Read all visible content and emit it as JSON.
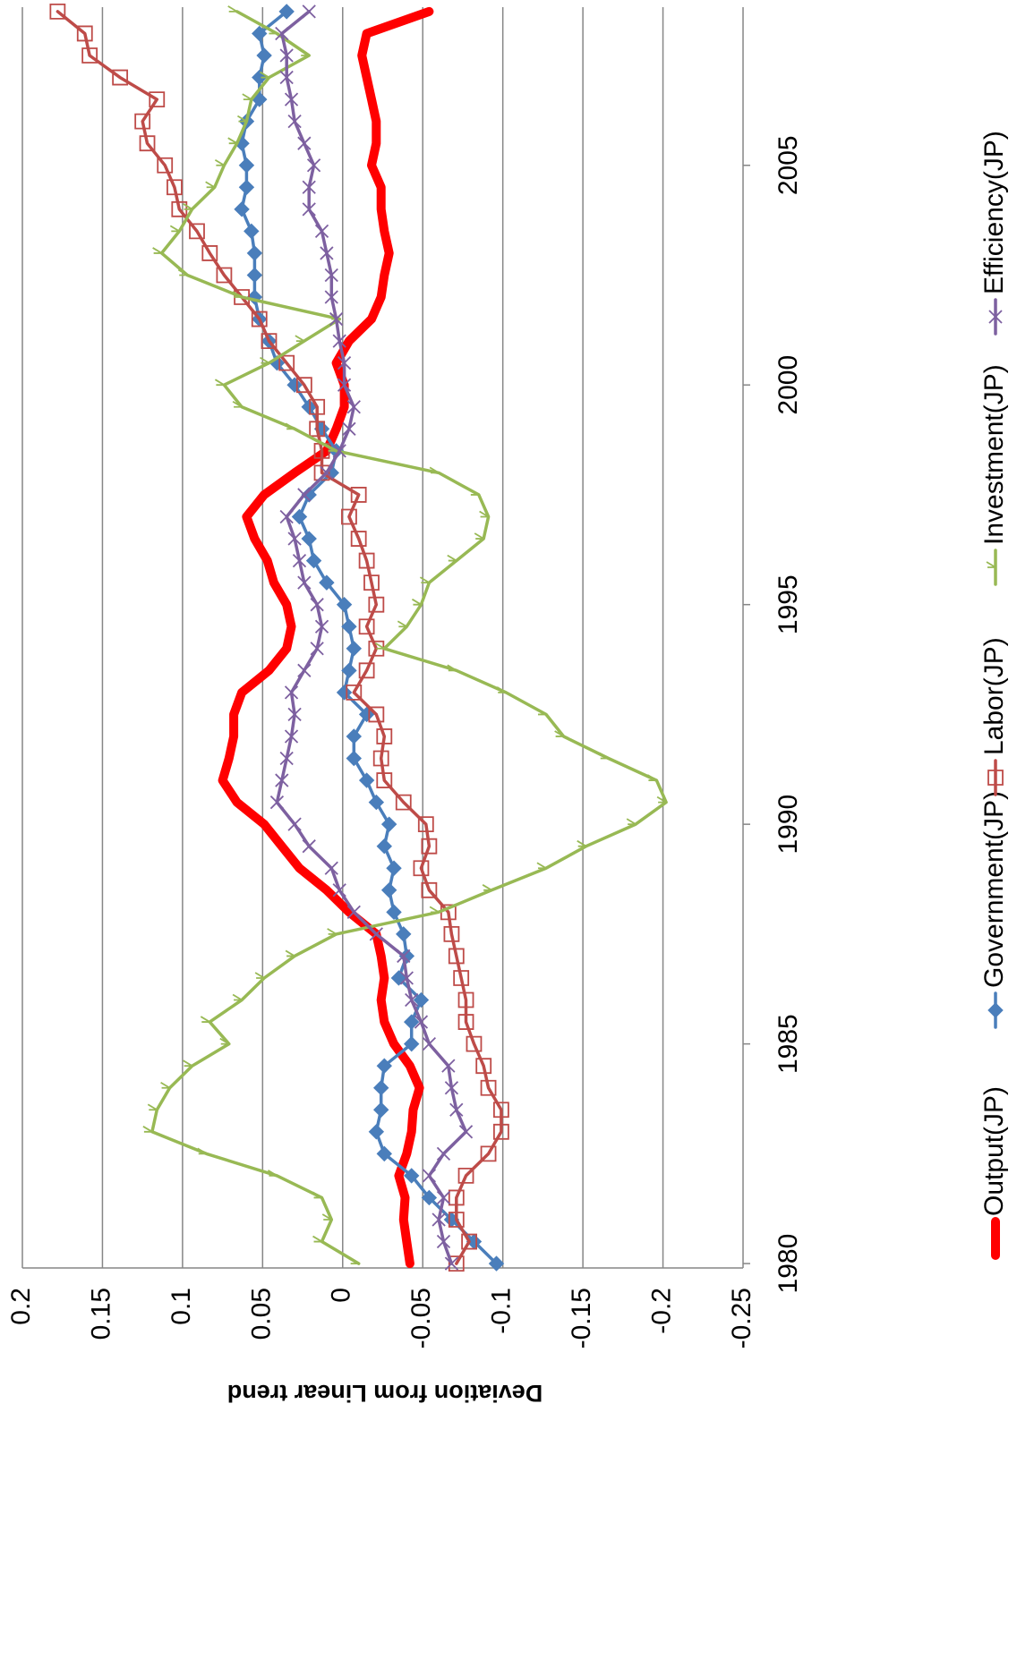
{
  "chart_data": {
    "type": "line",
    "y_label": "Deviation from Linear trend",
    "x": [
      1980,
      1980.5,
      1981,
      1981.5,
      1982,
      1982.5,
      1983,
      1983.5,
      1984,
      1984.5,
      1985,
      1985.5,
      1986,
      1986.5,
      1987,
      1987.5,
      1988,
      1988.5,
      1989,
      1989.5,
      1990,
      1990.5,
      1991,
      1991.5,
      1992,
      1992.5,
      1993,
      1993.5,
      1994,
      1994.5,
      1995,
      1995.5,
      1996,
      1996.5,
      1997,
      1997.5,
      1998,
      1998.5,
      1999,
      1999.5,
      2000,
      2000.5,
      2001,
      2001.5,
      2002,
      2002.5,
      2003,
      2003.5,
      2004,
      2004.5,
      2005,
      2005.5,
      2006,
      2006.5,
      2007,
      2007.5,
      2008,
      2008.5
    ],
    "xlim": [
      1979.9,
      2008.6
    ],
    "xticks": [
      1980,
      1985,
      1990,
      1995,
      2000,
      2005
    ],
    "ylim": [
      -0.25,
      0.2
    ],
    "yticks": [
      0.2,
      0.15,
      0.1,
      0.05,
      0,
      -0.05,
      -0.1,
      -0.15,
      -0.2,
      -0.25
    ],
    "grid": true,
    "legend": "bottom",
    "series": [
      {
        "name": "Output(JP)",
        "color": "#ff0000",
        "marker": "none",
        "values": [
          -0.042,
          -0.04,
          -0.038,
          -0.039,
          -0.035,
          -0.04,
          -0.043,
          -0.044,
          -0.048,
          -0.042,
          -0.032,
          -0.026,
          -0.024,
          -0.026,
          -0.024,
          -0.021,
          -0.004,
          0.01,
          0.027,
          0.038,
          0.049,
          0.066,
          0.075,
          0.071,
          0.068,
          0.068,
          0.063,
          0.046,
          0.035,
          0.032,
          0.035,
          0.043,
          0.047,
          0.055,
          0.06,
          0.049,
          0.03,
          0.01,
          0.004,
          -0.001,
          -0.001,
          0.004,
          -0.004,
          -0.018,
          -0.024,
          -0.026,
          -0.029,
          -0.026,
          -0.024,
          -0.024,
          -0.018,
          -0.021,
          -0.021,
          -0.018,
          -0.015,
          -0.012,
          -0.015,
          -0.054
        ]
      },
      {
        "name": "Government(JP)",
        "color": "#4a7ebb",
        "marker": "diamond",
        "values": [
          -0.096,
          -0.082,
          -0.068,
          -0.054,
          -0.043,
          -0.026,
          -0.021,
          -0.024,
          -0.024,
          -0.026,
          -0.043,
          -0.043,
          -0.049,
          -0.035,
          -0.04,
          -0.038,
          -0.032,
          -0.029,
          -0.032,
          -0.026,
          -0.029,
          -0.021,
          -0.015,
          -0.007,
          -0.007,
          -0.015,
          -0.001,
          -0.004,
          -0.007,
          -0.004,
          -0.001,
          0.01,
          0.018,
          0.021,
          0.027,
          0.021,
          0.007,
          0.004,
          0.013,
          0.021,
          0.03,
          0.041,
          0.046,
          0.052,
          0.055,
          0.055,
          0.055,
          0.057,
          0.063,
          0.06,
          0.06,
          0.063,
          0.06,
          0.052,
          0.052,
          0.049,
          0.052,
          0.035
        ]
      },
      {
        "name": "Labor(JP)",
        "color": "#be4b48",
        "marker": "square",
        "values": [
          -0.071,
          -0.079,
          -0.071,
          -0.071,
          -0.077,
          -0.091,
          -0.099,
          -0.099,
          -0.091,
          -0.088,
          -0.082,
          -0.077,
          -0.077,
          -0.074,
          -0.071,
          -0.068,
          -0.066,
          -0.054,
          -0.049,
          -0.054,
          -0.052,
          -0.038,
          -0.026,
          -0.024,
          -0.026,
          -0.021,
          -0.007,
          -0.015,
          -0.021,
          -0.015,
          -0.021,
          -0.018,
          -0.015,
          -0.01,
          -0.004,
          -0.01,
          0.013,
          0.013,
          0.016,
          0.016,
          0.024,
          0.035,
          0.046,
          0.052,
          0.063,
          0.074,
          0.083,
          0.091,
          0.102,
          0.105,
          0.111,
          0.122,
          0.125,
          0.116,
          0.139,
          0.158,
          0.161,
          0.178
        ]
      },
      {
        "name": "Investment(JP)",
        "color": "#98b954",
        "marker": "dash",
        "values": [
          -0.01,
          0.013,
          0.007,
          0.013,
          0.041,
          0.085,
          0.119,
          0.116,
          0.108,
          0.094,
          0.071,
          0.083,
          0.063,
          0.049,
          0.03,
          0.004,
          -0.06,
          -0.093,
          -0.127,
          -0.152,
          -0.183,
          -0.202,
          -0.196,
          -0.166,
          -0.138,
          -0.127,
          -0.102,
          -0.071,
          -0.026,
          -0.04,
          -0.049,
          -0.054,
          -0.071,
          -0.088,
          -0.091,
          -0.085,
          -0.06,
          0.004,
          0.03,
          0.063,
          0.074,
          0.046,
          0.024,
          0.002,
          0.063,
          0.097,
          0.113,
          0.102,
          0.094,
          0.08,
          0.074,
          0.066,
          0.06,
          0.057,
          0.046,
          0.021,
          0.041,
          0.066
        ]
      },
      {
        "name": "Efficiency(JP)",
        "color": "#7d60a0",
        "marker": "x",
        "values": [
          -0.068,
          -0.063,
          -0.06,
          -0.063,
          -0.054,
          -0.063,
          -0.077,
          -0.071,
          -0.068,
          -0.066,
          -0.054,
          -0.049,
          -0.043,
          -0.04,
          -0.038,
          -0.021,
          -0.007,
          0.002,
          0.007,
          0.021,
          0.03,
          0.041,
          0.038,
          0.035,
          0.032,
          0.03,
          0.032,
          0.024,
          0.016,
          0.013,
          0.016,
          0.024,
          0.027,
          0.03,
          0.035,
          0.024,
          0.01,
          0.002,
          -0.004,
          -0.007,
          -0.001,
          -0.001,
          0.002,
          0.004,
          0.007,
          0.007,
          0.01,
          0.013,
          0.021,
          0.021,
          0.018,
          0.024,
          0.03,
          0.032,
          0.035,
          0.035,
          0.038,
          0.021
        ]
      }
    ]
  }
}
